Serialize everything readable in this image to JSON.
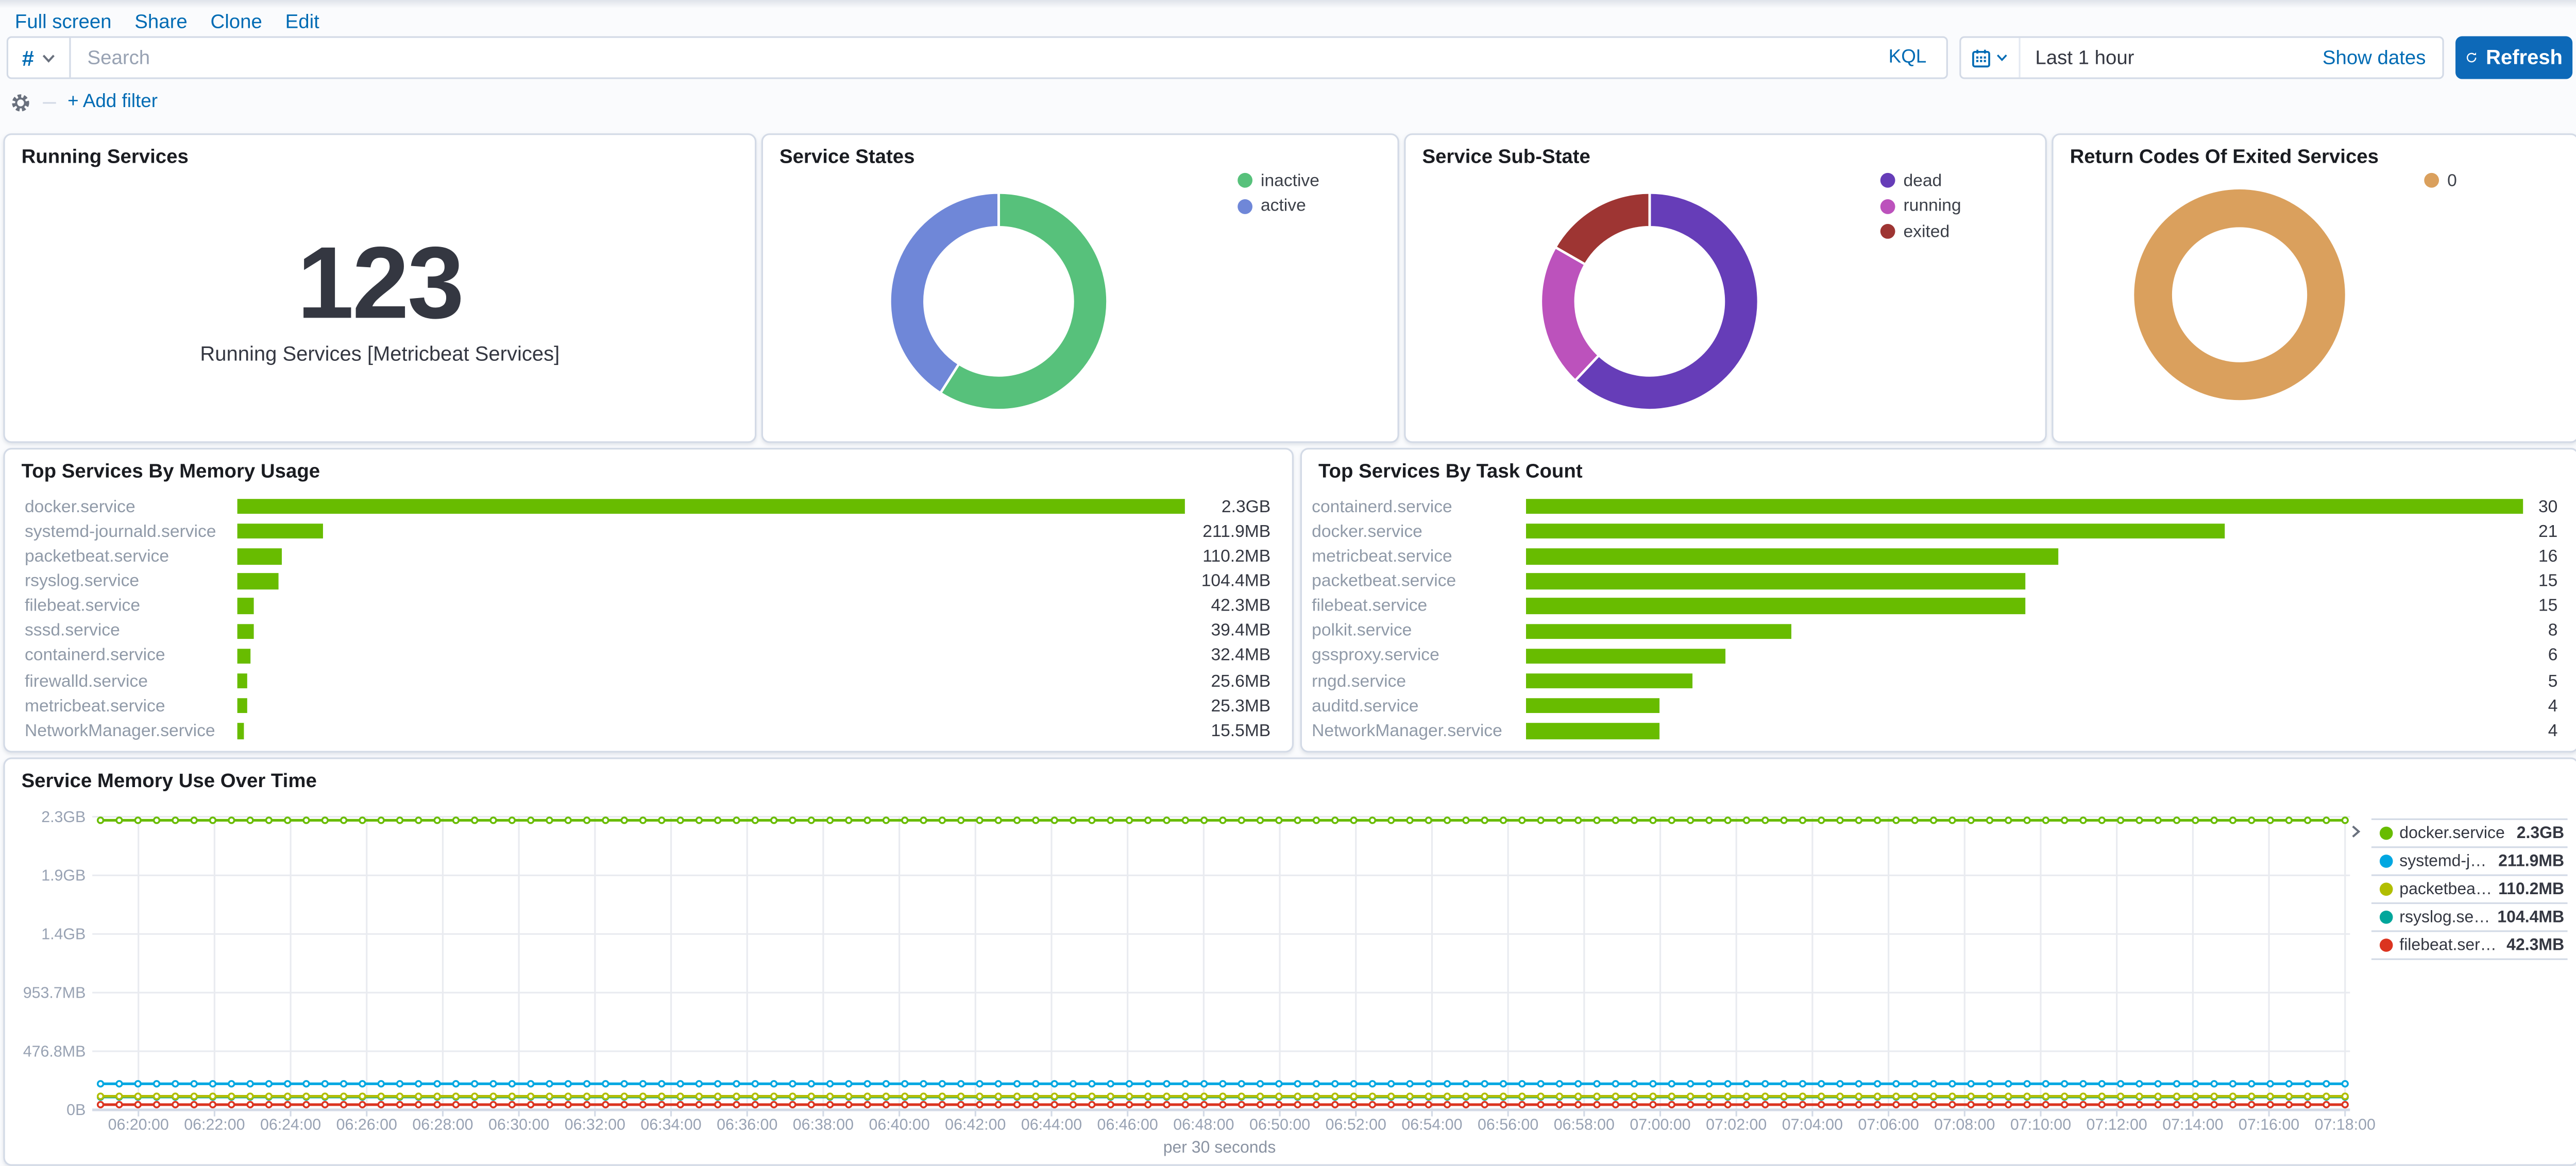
{
  "theme": {
    "link_color": "#006BB4",
    "primary_button_color": "#0d69b8",
    "panel_border": "#D3DAE6",
    "bar_color": "#68BC00"
  },
  "toolbar": {
    "links": [
      {
        "label": "Full screen"
      },
      {
        "label": "Share"
      },
      {
        "label": "Clone"
      },
      {
        "label": "Edit"
      }
    ]
  },
  "query_bar": {
    "filter_symbol": "#",
    "search_placeholder": "Search",
    "kql_label": "KQL"
  },
  "time_picker": {
    "range_label": "Last 1 hour",
    "show_dates_label": "Show dates",
    "refresh_label": "Refresh"
  },
  "filter_bar": {
    "add_filter_label": "+ Add filter"
  },
  "panels": {
    "running_services": {
      "title": "Running Services",
      "metric_value": "123",
      "metric_label": "Running Services [Metricbeat Services]"
    },
    "service_states": {
      "title": "Service States"
    },
    "service_sub_state": {
      "title": "Service Sub-State"
    },
    "return_codes": {
      "title": "Return Codes Of Exited Services"
    },
    "top_memory": {
      "title": "Top Services By Memory Usage"
    },
    "top_tasks": {
      "title": "Top Services By Task Count"
    },
    "memory_over_time": {
      "title": "Service Memory Use Over Time",
      "xlabel": "per 30 seconds"
    }
  },
  "chart_data": [
    {
      "id": "service_states",
      "type": "pie",
      "title": "Service States",
      "legend_position": "top-right",
      "slices": [
        {
          "label": "inactive",
          "pct": 59,
          "color": "#57c17b"
        },
        {
          "label": "active",
          "pct": 41,
          "color": "#6f87d8"
        }
      ]
    },
    {
      "id": "service_sub_state",
      "type": "pie",
      "title": "Service Sub-State",
      "legend_position": "top-right",
      "slices": [
        {
          "label": "dead",
          "pct": 62,
          "color": "#663db8"
        },
        {
          "label": "running",
          "pct": 21.3,
          "color": "#bc52bc"
        },
        {
          "label": "exited",
          "pct": 16.7,
          "color": "#9e3533"
        }
      ]
    },
    {
      "id": "return_codes",
      "type": "pie",
      "title": "Return Codes Of Exited Services",
      "legend_position": "top-right",
      "slices": [
        {
          "label": "0",
          "pct": 100,
          "color": "#daa05d"
        }
      ]
    },
    {
      "id": "top_memory",
      "type": "bar",
      "orientation": "horizontal",
      "title": "Top Services By Memory Usage",
      "color": "#68BC00",
      "max_mb": 2355.2,
      "bars": [
        {
          "label": "docker.service",
          "value_mb": 2355.2,
          "value_label": "2.3GB"
        },
        {
          "label": "systemd-journald.service",
          "value_mb": 211.9,
          "value_label": "211.9MB"
        },
        {
          "label": "packetbeat.service",
          "value_mb": 110.2,
          "value_label": "110.2MB"
        },
        {
          "label": "rsyslog.service",
          "value_mb": 104.4,
          "value_label": "104.4MB"
        },
        {
          "label": "filebeat.service",
          "value_mb": 42.3,
          "value_label": "42.3MB"
        },
        {
          "label": "sssd.service",
          "value_mb": 39.4,
          "value_label": "39.4MB"
        },
        {
          "label": "containerd.service",
          "value_mb": 32.4,
          "value_label": "32.4MB"
        },
        {
          "label": "firewalld.service",
          "value_mb": 25.6,
          "value_label": "25.6MB"
        },
        {
          "label": "metricbeat.service",
          "value_mb": 25.3,
          "value_label": "25.3MB"
        },
        {
          "label": "NetworkManager.service",
          "value_mb": 15.5,
          "value_label": "15.5MB"
        }
      ]
    },
    {
      "id": "top_tasks",
      "type": "bar",
      "orientation": "horizontal",
      "title": "Top Services By Task Count",
      "color": "#68BC00",
      "max": 30,
      "bars": [
        {
          "label": "containerd.service",
          "value": 30,
          "value_label": "30"
        },
        {
          "label": "docker.service",
          "value": 21,
          "value_label": "21"
        },
        {
          "label": "metricbeat.service",
          "value": 16,
          "value_label": "16"
        },
        {
          "label": "packetbeat.service",
          "value": 15,
          "value_label": "15"
        },
        {
          "label": "filebeat.service",
          "value": 15,
          "value_label": "15"
        },
        {
          "label": "polkit.service",
          "value": 8,
          "value_label": "8"
        },
        {
          "label": "gssproxy.service",
          "value": 6,
          "value_label": "6"
        },
        {
          "label": "rngd.service",
          "value": 5,
          "value_label": "5"
        },
        {
          "label": "auditd.service",
          "value": 4,
          "value_label": "4"
        },
        {
          "label": "NetworkManager.service",
          "value": 4,
          "value_label": "4"
        }
      ]
    },
    {
      "id": "memory_over_time",
      "type": "line",
      "title": "Service Memory Use Over Time",
      "xlabel": "per 30 seconds",
      "ylim_mb": [
        0,
        2384.2
      ],
      "grid": true,
      "legend_position": "right",
      "y_ticks": [
        {
          "label": "0B",
          "mb": 0
        },
        {
          "label": "476.8MB",
          "mb": 476.8
        },
        {
          "label": "953.7MB",
          "mb": 953.7
        },
        {
          "label": "1.4GB",
          "mb": 1430.5
        },
        {
          "label": "1.9GB",
          "mb": 1907.3
        },
        {
          "label": "2.3GB",
          "mb": 2384.2
        }
      ],
      "x_ticks": [
        "06:20:00",
        "06:22:00",
        "06:24:00",
        "06:26:00",
        "06:28:00",
        "06:30:00",
        "06:32:00",
        "06:34:00",
        "06:36:00",
        "06:38:00",
        "06:40:00",
        "06:42:00",
        "06:44:00",
        "06:46:00",
        "06:48:00",
        "06:50:00",
        "06:52:00",
        "06:54:00",
        "06:56:00",
        "06:58:00",
        "07:00:00",
        "07:02:00",
        "07:04:00",
        "07:06:00",
        "07:08:00",
        "07:10:00",
        "07:12:00",
        "07:14:00",
        "07:16:00",
        "07:18:00"
      ],
      "series": [
        {
          "name": "docker.service",
          "value_label": "2.3GB",
          "value_mb": 2355.2,
          "color": "#68BC00"
        },
        {
          "name": "systemd-jour...",
          "value_label": "211.9MB",
          "value_mb": 211.9,
          "color": "#00A7E1"
        },
        {
          "name": "packetbeat.s...",
          "value_label": "110.2MB",
          "value_mb": 110.2,
          "color": "#B1BE00"
        },
        {
          "name": "rsyslog.service",
          "value_label": "104.4MB",
          "value_mb": 104.4,
          "color": "#00A69B"
        },
        {
          "name": "filebeat.service",
          "value_label": "42.3MB",
          "value_mb": 42.3,
          "color": "#DB3420"
        }
      ]
    }
  ]
}
